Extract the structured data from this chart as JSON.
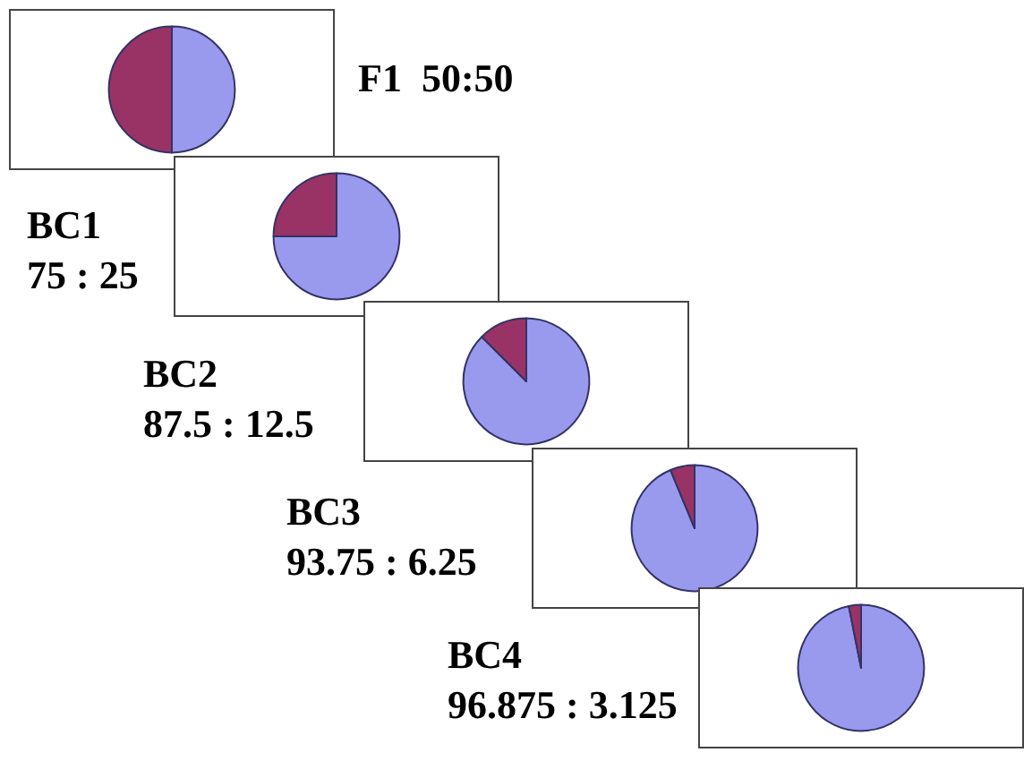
{
  "chart_data": [
    {
      "type": "pie",
      "title": "F1  50:50",
      "categories": [
        null,
        null
      ],
      "values": [
        50,
        50
      ],
      "colors": [
        "#9999ee",
        "#993366"
      ]
    },
    {
      "type": "pie",
      "title": "BC1",
      "subtitle": "75 : 25",
      "categories": [
        null,
        null
      ],
      "values": [
        75,
        25
      ],
      "colors": [
        "#9999ee",
        "#993366"
      ]
    },
    {
      "type": "pie",
      "title": "BC2",
      "subtitle": "87.5 : 12.5",
      "categories": [
        null,
        null
      ],
      "values": [
        87.5,
        12.5
      ],
      "colors": [
        "#9999ee",
        "#993366"
      ]
    },
    {
      "type": "pie",
      "title": "BC3",
      "subtitle": "93.75 : 6.25",
      "categories": [
        null,
        null
      ],
      "values": [
        93.75,
        6.25
      ],
      "colors": [
        "#9999ee",
        "#993366"
      ]
    },
    {
      "type": "pie",
      "title": "BC4",
      "subtitle": "96.875 : 3.125",
      "categories": [
        null,
        null
      ],
      "values": [
        96.875,
        3.125
      ],
      "colors": [
        "#9999ee",
        "#993366"
      ]
    }
  ]
}
